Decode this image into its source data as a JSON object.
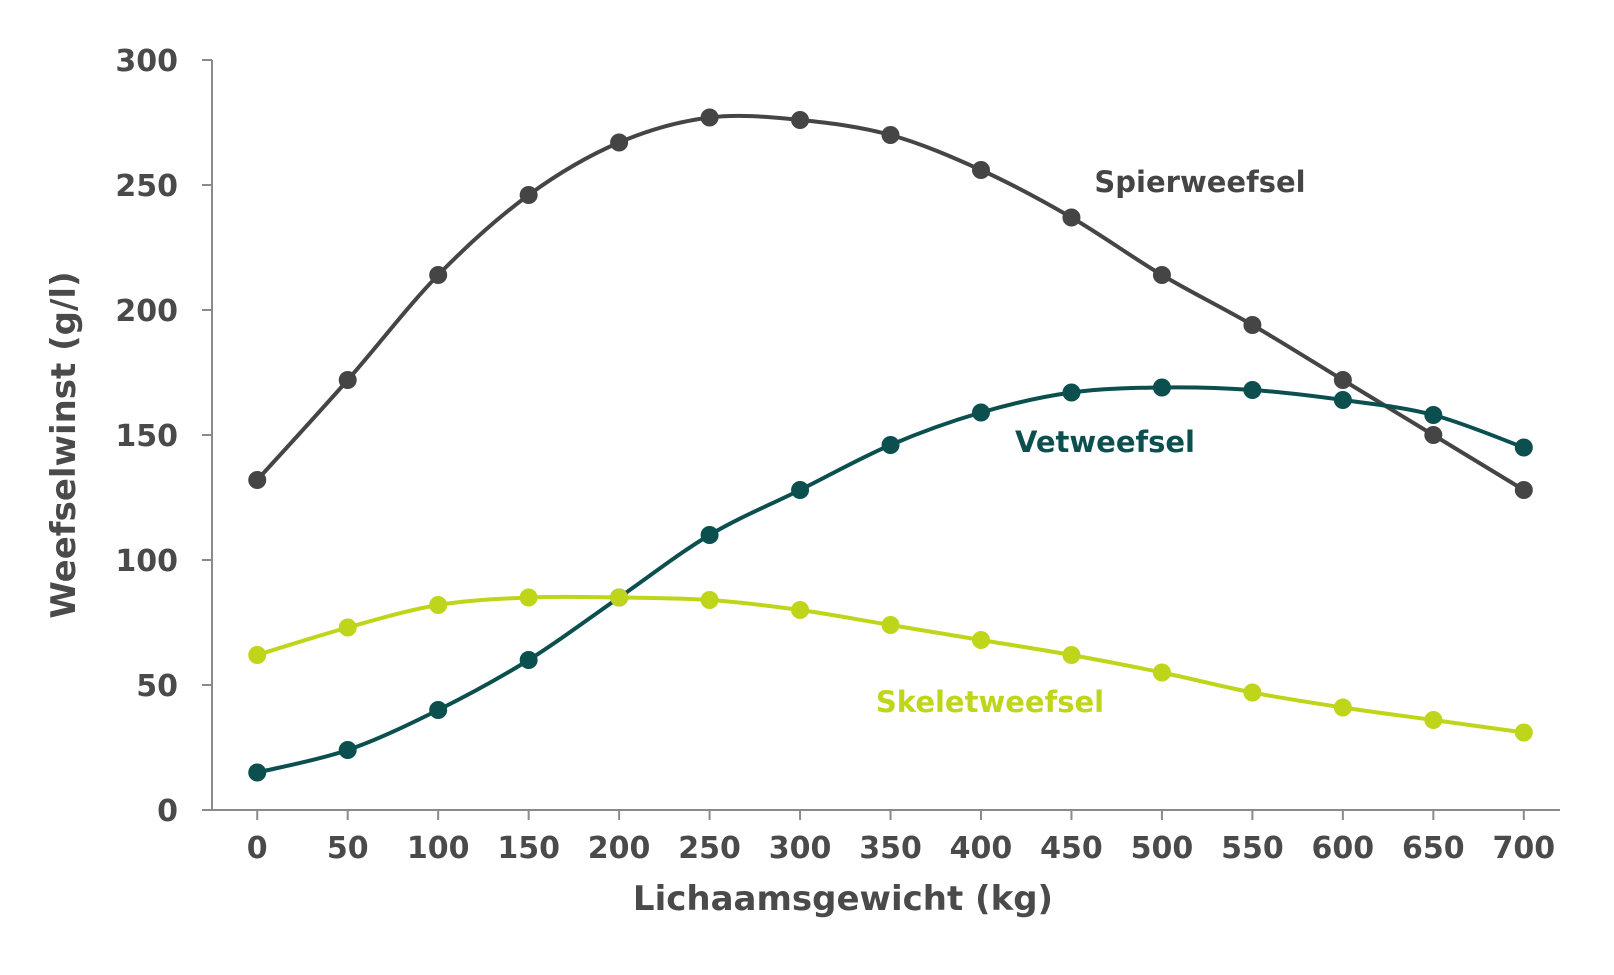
{
  "chart_data": {
    "type": "line",
    "xlabel": "Lichaamsgewicht (kg)",
    "ylabel": "Weefselwinst (g/l)",
    "xlim": [
      -25,
      720
    ],
    "ylim": [
      0,
      300
    ],
    "x_ticks": [
      0,
      50,
      100,
      150,
      200,
      250,
      300,
      350,
      400,
      450,
      500,
      550,
      600,
      650,
      700
    ],
    "y_ticks": [
      0,
      50,
      100,
      150,
      200,
      250,
      300
    ],
    "grid": false,
    "x": [
      0,
      50,
      100,
      150,
      200,
      250,
      300,
      350,
      400,
      450,
      500,
      550,
      600,
      650,
      700
    ],
    "series": [
      {
        "name": "Spierweefsel",
        "color": "#454545",
        "values": [
          132,
          172,
          214,
          246,
          267,
          277,
          276,
          270,
          256,
          237,
          214,
          194,
          172,
          150,
          128
        ]
      },
      {
        "name": "Vetweefsel",
        "color": "#0b4f4f",
        "values": [
          15,
          24,
          40,
          60,
          85,
          110,
          128,
          146,
          159,
          167,
          169,
          168,
          164,
          158,
          145
        ]
      },
      {
        "name": "Skeletweefsel",
        "color": "#bfd51a",
        "values": [
          62,
          73,
          82,
          85,
          85,
          84,
          80,
          74,
          68,
          62,
          55,
          47,
          41,
          36,
          31
        ]
      }
    ]
  }
}
